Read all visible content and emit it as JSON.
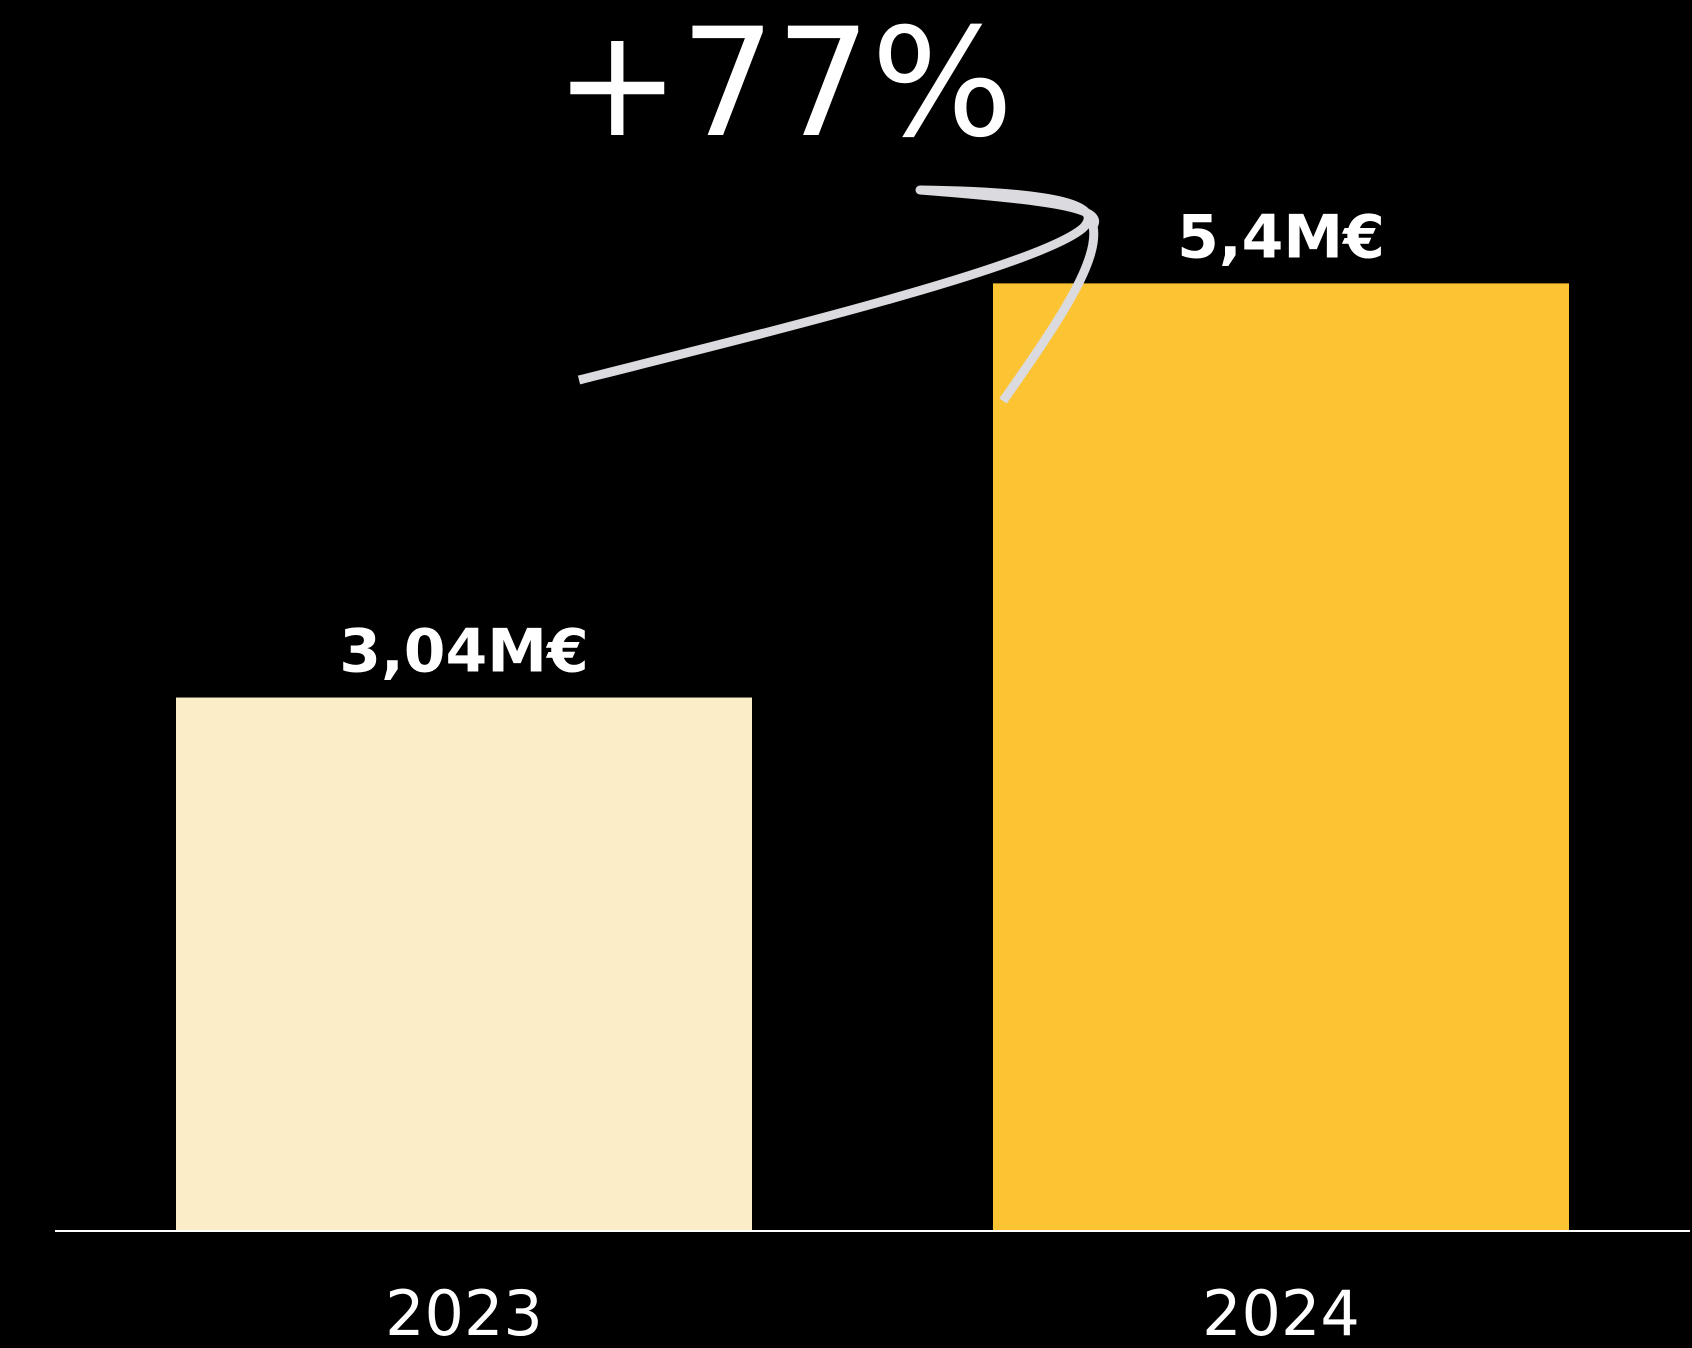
{
  "chart_data": {
    "type": "bar",
    "categories": [
      "2023",
      "2024"
    ],
    "values": [
      3.04,
      5.4
    ],
    "value_labels": [
      "3,04M€",
      "5,4M€"
    ],
    "bar_colors": [
      "#FCEDC9",
      "#FCC332"
    ],
    "annotation": "+77%",
    "ylim": [
      0,
      6.2
    ],
    "grid": false,
    "legend": "none",
    "background": "#000000",
    "baseline_color": "#FFFFFF",
    "arrow_color": "#DADADF",
    "title": "",
    "xlabel": "",
    "ylabel": ""
  }
}
